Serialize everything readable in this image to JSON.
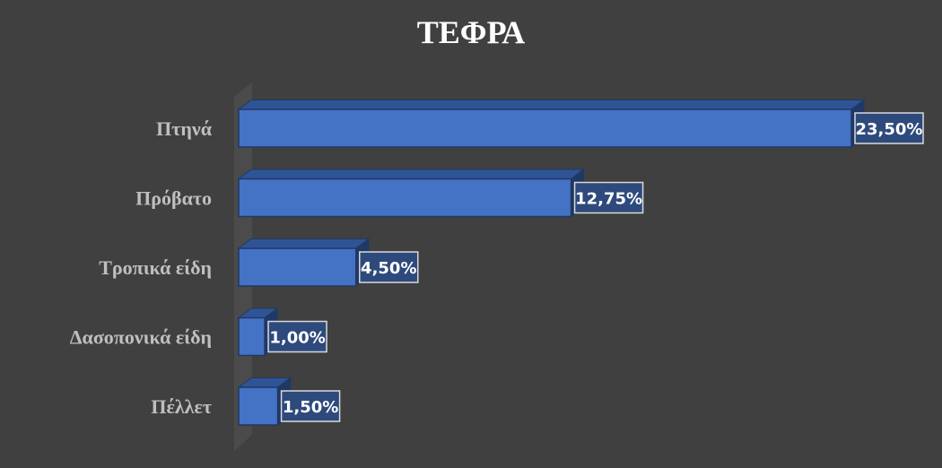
{
  "chart_data": {
    "type": "bar",
    "orientation": "horizontal",
    "style": "3d-clustered",
    "title": "ΤΕΦΡΑ",
    "categories": [
      "Πτηνά",
      "Πρόβατο",
      "Τροπικά είδη",
      "Δασοπονικά είδη",
      "Πέλλετ"
    ],
    "values": [
      23.5,
      12.75,
      4.5,
      1.0,
      1.5
    ],
    "data_labels": [
      "23,50%",
      "12,75%",
      "4,50%",
      "1,00%",
      "1,50%"
    ],
    "value_unit": "%",
    "xlim": [
      0,
      23.5
    ],
    "grid": false,
    "legend": "none"
  },
  "colors": {
    "background": "#404040",
    "bar_front": "#4472c4",
    "bar_top": "#2f5496",
    "bar_side": "#203864",
    "bar_outline": "#203864",
    "wall": "#4d4d4d",
    "label_box_fill": "#2e4a7d",
    "label_box_border": "#d9d9d9",
    "category_text": "#bfbfbf",
    "title_text": "#ffffff"
  }
}
